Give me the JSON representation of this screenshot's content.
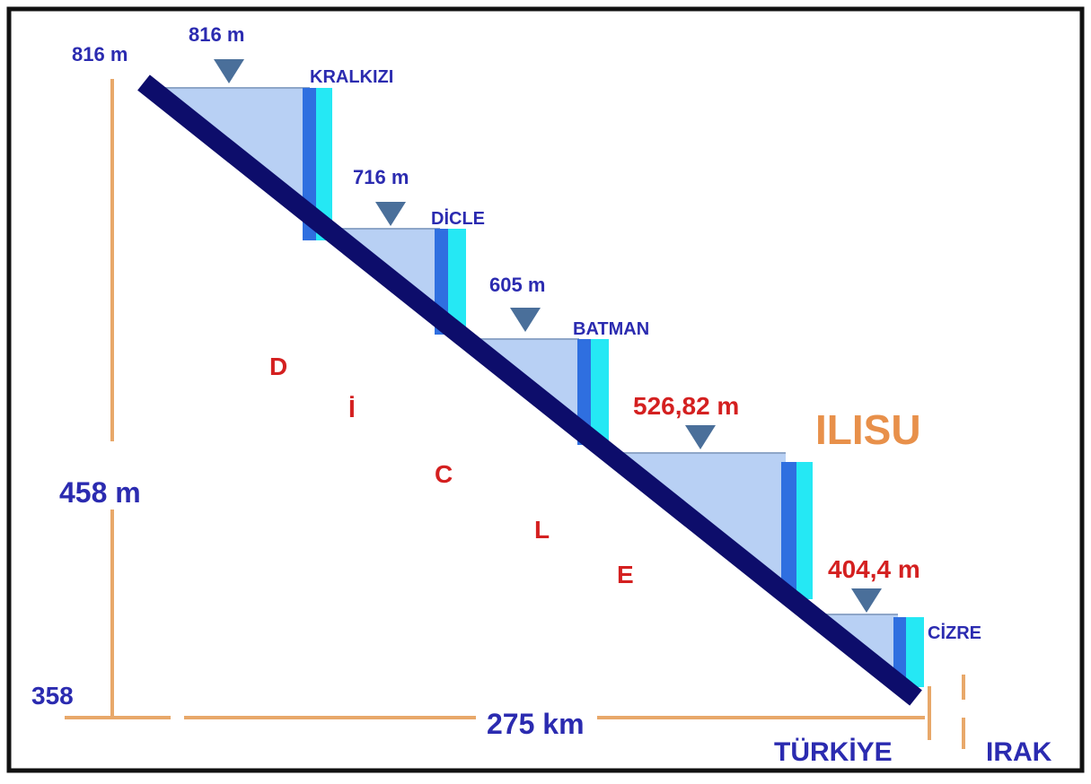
{
  "top_left_elevation": "816 m",
  "dams": [
    {
      "elevation": "816 m",
      "name": "KRALKIZI"
    },
    {
      "elevation": "716 m",
      "name": "DİCLE"
    },
    {
      "elevation": "605 m",
      "name": "BATMAN"
    },
    {
      "elevation": "526,82 m",
      "name": "ILISU"
    },
    {
      "elevation": "404,4 m",
      "name": "CİZRE"
    }
  ],
  "river_letters": [
    "D",
    "İ",
    "C",
    "L",
    "E"
  ],
  "height_difference": "458 m",
  "bottom_elevation": "358",
  "length": "275 km",
  "countries": [
    "TÜRKİYE",
    "IRAK"
  ]
}
